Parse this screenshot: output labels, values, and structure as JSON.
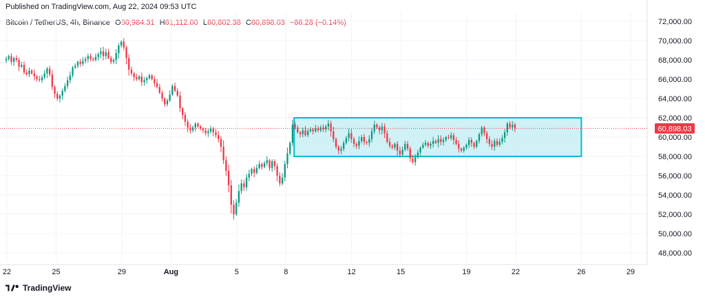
{
  "header": {
    "published": "Published on TradingView.com, Aug 22, 2024 09:53 UTC",
    "symbol": "Bitcoin / TetherUS, 4h, Binance",
    "o_label": "O",
    "o_value": "60,984.31",
    "h_label": "H",
    "h_value": "61,112.00",
    "l_label": "L",
    "l_value": "60,802.38",
    "c_label": "C",
    "c_value": "60,898.03",
    "change": "−86.28 (−0.14%)"
  },
  "price_badge": "60,898.03",
  "footer": {
    "brand": "TradingView",
    "logo_icon": "tradingview-logo-icon"
  },
  "colors": {
    "up": "#089981",
    "down": "#f23645",
    "box_fill": "#c8eff3",
    "box_stroke": "#00bcd4",
    "badge": "#f23645",
    "grid": "#f0f3fa"
  },
  "chart_data": {
    "type": "candlestick",
    "interval": "4h",
    "last_price": 60898.03,
    "price_line": 60898.03,
    "ylim": [
      47000,
      73000
    ],
    "y_ticks": [
      72000,
      70000,
      68000,
      66000,
      64000,
      62000,
      60000,
      58000,
      56000,
      54000,
      52000,
      50000,
      48000
    ],
    "y_tick_labels": [
      "72,000.00",
      "70,000.00",
      "68,000.00",
      "66,000.00",
      "64,000.00",
      "62,000.00",
      "60,000.00",
      "58,000.00",
      "56,000.00",
      "54,000.00",
      "52,000.00",
      "50,000.00",
      "48,000.00"
    ],
    "x_ticks": [
      {
        "day": 0,
        "label": "22"
      },
      {
        "day": 3,
        "label": "25"
      },
      {
        "day": 7,
        "label": "29"
      },
      {
        "day": 10,
        "label": "Aug"
      },
      {
        "day": 14,
        "label": "5"
      },
      {
        "day": 17,
        "label": "8"
      },
      {
        "day": 21,
        "label": "12"
      },
      {
        "day": 24,
        "label": "15"
      },
      {
        "day": 28,
        "label": "19"
      },
      {
        "day": 31,
        "label": "22"
      },
      {
        "day": 35,
        "label": "26"
      },
      {
        "day": 38,
        "label": "29"
      }
    ],
    "range_box": {
      "day_start": 17.5,
      "day_end": 35.0,
      "price_low": 58000,
      "price_high": 62000
    },
    "closes": [
      68100,
      68400,
      67800,
      68200,
      68000,
      67300,
      67500,
      66700,
      66500,
      66900,
      66600,
      66300,
      66000,
      65900,
      66200,
      66600,
      67100,
      66500,
      65200,
      64500,
      64000,
      64300,
      64800,
      65300,
      65900,
      66400,
      67200,
      67400,
      67800,
      67600,
      67900,
      68100,
      68400,
      68100,
      68000,
      68300,
      68600,
      68900,
      68400,
      68800,
      68200,
      67800,
      68000,
      68700,
      69500,
      69900,
      69300,
      68200,
      67000,
      66600,
      66200,
      66000,
      66300,
      65700,
      65900,
      66100,
      66400,
      66000,
      65600,
      65200,
      64600,
      64000,
      63400,
      63800,
      64400,
      65300,
      64800,
      64300,
      63000,
      62300,
      61600,
      61000,
      60700,
      61000,
      61400,
      61100,
      60900,
      60700,
      60400,
      60600,
      60900,
      60500,
      60200,
      59800,
      59000,
      57600,
      56500,
      55000,
      53000,
      52000,
      53200,
      54400,
      55200,
      54800,
      55800,
      56200,
      56700,
      56300,
      56800,
      57200,
      56900,
      57300,
      57600,
      56800,
      57500,
      57000,
      56000,
      55200,
      55800,
      57200,
      58300,
      59400,
      61300,
      61000,
      60500,
      60300,
      60700,
      60200,
      60600,
      60800,
      60600,
      60900,
      60700,
      61000,
      60800,
      61100,
      61400,
      60600,
      59800,
      59000,
      58600,
      58800,
      59400,
      59900,
      60400,
      59800,
      59300,
      59100,
      59600,
      60000,
      59500,
      59400,
      59800,
      60600,
      61300,
      61000,
      60700,
      61100,
      60400,
      59500,
      59100,
      58900,
      59300,
      58600,
      58200,
      58700,
      59300,
      58800,
      57800,
      57400,
      57900,
      58400,
      58900,
      59200,
      59400,
      59100,
      59300,
      59600,
      59400,
      59800,
      59500,
      59700,
      60000,
      59900,
      60200,
      59700,
      59300,
      58800,
      58600,
      58900,
      59200,
      59700,
      59400,
      59000,
      59600,
      60300,
      61000,
      60400,
      59800,
      59300,
      59000,
      59600,
      59200,
      59500,
      59900,
      60500,
      61400,
      61000,
      61300,
      60898
    ]
  }
}
